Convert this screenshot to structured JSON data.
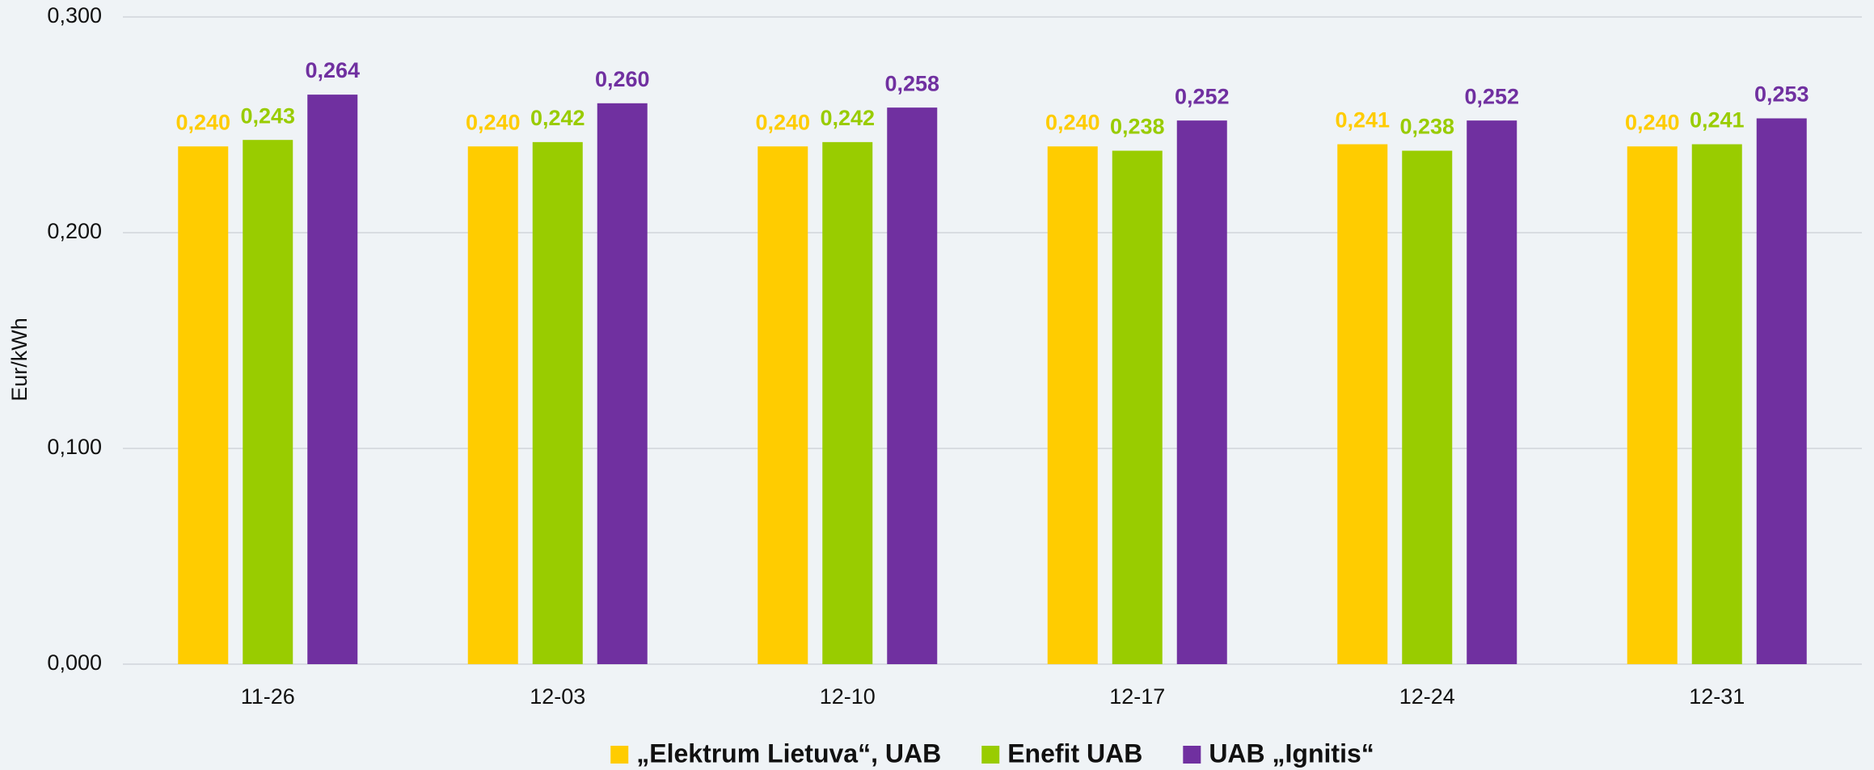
{
  "chart_data": {
    "type": "bar",
    "y_label": "Eur/kWh",
    "categories": [
      "11-26",
      "12-03",
      "12-10",
      "12-17",
      "12-24",
      "12-31"
    ],
    "series": [
      {
        "name": "„Elektrum Lietuva“, UAB",
        "color": "#ffcc00",
        "values": [
          0.24,
          0.24,
          0.24,
          0.24,
          0.241,
          0.24
        ],
        "value_labels": [
          "0,240",
          "0,240",
          "0,240",
          "0,240",
          "0,241",
          "0,240"
        ]
      },
      {
        "name": "Enefit UAB",
        "color": "#99cc00",
        "values": [
          0.243,
          0.242,
          0.242,
          0.238,
          0.238,
          0.241
        ],
        "value_labels": [
          "0,243",
          "0,242",
          "0,242",
          "0,238",
          "0,238",
          "0,241"
        ]
      },
      {
        "name": "UAB „Ignitis“",
        "color": "#7030a0",
        "values": [
          0.264,
          0.26,
          0.258,
          0.252,
          0.252,
          0.253
        ],
        "value_labels": [
          "0,264",
          "0,260",
          "0,258",
          "0,252",
          "0,252",
          "0,253"
        ]
      }
    ],
    "ylim": [
      0,
      0.3
    ],
    "yticks": [
      {
        "value": 0,
        "label": "0,000"
      },
      {
        "value": 0.1,
        "label": "0,100"
      },
      {
        "value": 0.2,
        "label": "0,200"
      },
      {
        "value": 0.3,
        "label": "0,300"
      }
    ],
    "grid": true,
    "legend": "bottom"
  }
}
